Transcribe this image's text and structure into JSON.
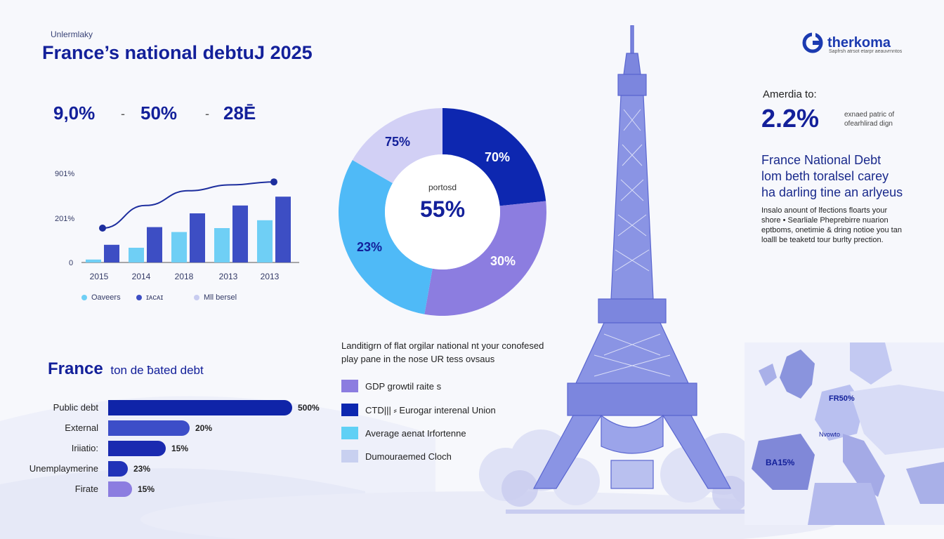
{
  "header": {
    "kicker": "Unlermlaky",
    "title": "France’s national debtuJ 2025"
  },
  "brand": {
    "name": "therkoma",
    "tagline": "Sapfrsh atrsot etarpr aeauvrnntos"
  },
  "stats": [
    "9,0%",
    "50%",
    "28Ē"
  ],
  "stats_sep": "-",
  "side": {
    "label": "Amerdia to:",
    "value": "2.2%",
    "note": "exnaed patric of ofearhlirad dign",
    "heading": "France National Debt",
    "subheading_1": "lom beth toralsel carey",
    "subheading_2": "ha darling tine an arlyeus",
    "body": "Insalo anount of lfections floarts your shore • Searliale Pheprebirre nuarion eptboms, onetimie & dring notioe you tan loalll be teaketd tour burlty prection."
  },
  "mid_text": "Landitigrn of flat orgilar national nt your conofesed play pane in the nose UR tess ovsaus",
  "map_labels": [
    "FR50%",
    "Nvowto",
    "BA15%"
  ],
  "chart_data": [
    {
      "type": "bar",
      "categories": [
        "2015",
        "2014",
        "2018",
        "2013",
        "2013"
      ],
      "yticks": [
        "0",
        "201%",
        "901%"
      ],
      "series": [
        {
          "name": "Oaveers",
          "color": "#6fcff5",
          "values": [
            3,
            15,
            31,
            35,
            43
          ]
        },
        {
          "name": "ɪᴀᴄᴀɪ",
          "color": "#3d4ec4",
          "values": [
            18,
            36,
            50,
            58,
            67
          ]
        }
      ],
      "line": {
        "name": "Mll bersel",
        "color": "#1d2e9e",
        "values": [
          35,
          58,
          73,
          79,
          82
        ]
      },
      "ylim": [
        0,
        100
      ]
    },
    {
      "type": "pie",
      "center_label": "portosd",
      "center_value": "55%",
      "slices": [
        {
          "label": "70%",
          "value": 70,
          "color": "#0d27b0"
        },
        {
          "label": "30%",
          "value": 30,
          "color": "#8c7de0"
        },
        {
          "label": "23%",
          "value": 23,
          "color": "#4fbaf7"
        },
        {
          "label": "75%",
          "value": 75,
          "color": "#d2d0f5"
        }
      ],
      "legend": [
        {
          "label": "GDP growtil raite s",
          "color": "#8c7de0"
        },
        {
          "label": "CTD||| ⸗ Eurogar interenal Union",
          "color": "#0d27b0"
        },
        {
          "label": "Average aenat Irfortenne",
          "color": "#5fd0f5"
        },
        {
          "label": "Dumouraemed Cloch",
          "color": "#c8d0f0"
        }
      ]
    },
    {
      "type": "bar",
      "orientation": "horizontal",
      "title": "France",
      "subtitle": "ton de ƀated debt",
      "categories": [
        "Public debt",
        "External",
        "Iriiatio:",
        "Unemplaymerine",
        "Firate"
      ],
      "values": [
        500,
        20,
        15,
        23,
        15
      ],
      "labels": [
        "500%",
        "20%",
        "15%",
        "23%",
        "15%"
      ],
      "colors": [
        "#0f24a8",
        "#3c4ec8",
        "#1a2ab0",
        "#2032b8",
        "#8c7de0"
      ]
    }
  ]
}
